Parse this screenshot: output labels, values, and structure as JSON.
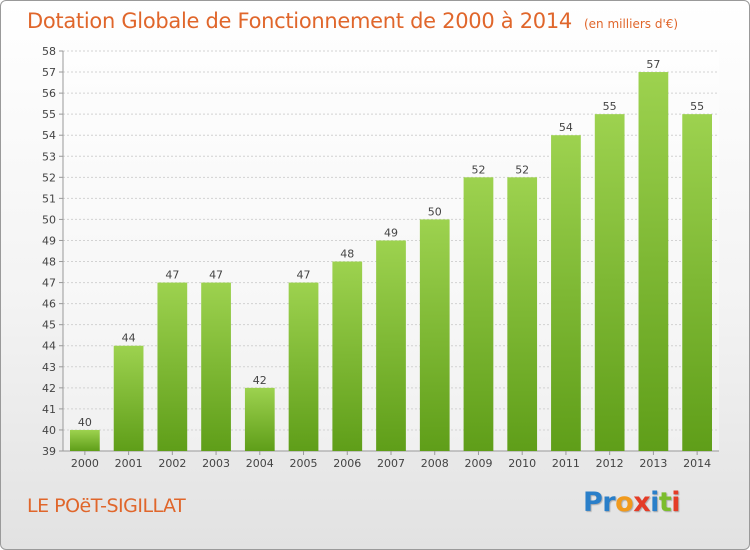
{
  "title": "Dotation Globale de Fonctionnement de 2000 à 2014",
  "subtitle": "(en milliers d'€)",
  "town": "LE POëT-SIGILLAT",
  "logo": {
    "text": "Proxiti",
    "letters": [
      {
        "ch": "P",
        "color": "#2a7fc9"
      },
      {
        "ch": "r",
        "color": "#2a7fc9"
      },
      {
        "ch": "o",
        "color": "#f19a1c"
      },
      {
        "ch": "x",
        "color": "#e43c27"
      },
      {
        "ch": "i",
        "color": "#2a7fc9"
      },
      {
        "ch": "t",
        "color": "#7cbd2c"
      },
      {
        "ch": "i",
        "color": "#e43c27"
      }
    ]
  },
  "chart_data": {
    "type": "bar",
    "categories": [
      "2000",
      "2001",
      "2002",
      "2003",
      "2004",
      "2005",
      "2006",
      "2007",
      "2008",
      "2009",
      "2010",
      "2011",
      "2012",
      "2013",
      "2014"
    ],
    "values": [
      40,
      44,
      47,
      47,
      42,
      47,
      48,
      49,
      50,
      52,
      52,
      54,
      55,
      57,
      55
    ],
    "ylim": [
      39,
      58
    ],
    "yticks": [
      39,
      40,
      41,
      42,
      43,
      44,
      45,
      46,
      47,
      48,
      49,
      50,
      51,
      52,
      53,
      54,
      55,
      56,
      57,
      58
    ],
    "grid": true,
    "bar_color_top": "#9dd24f",
    "bar_color_bottom": "#5f9e19",
    "axis_color": "#999999",
    "text_color": "#444444"
  }
}
